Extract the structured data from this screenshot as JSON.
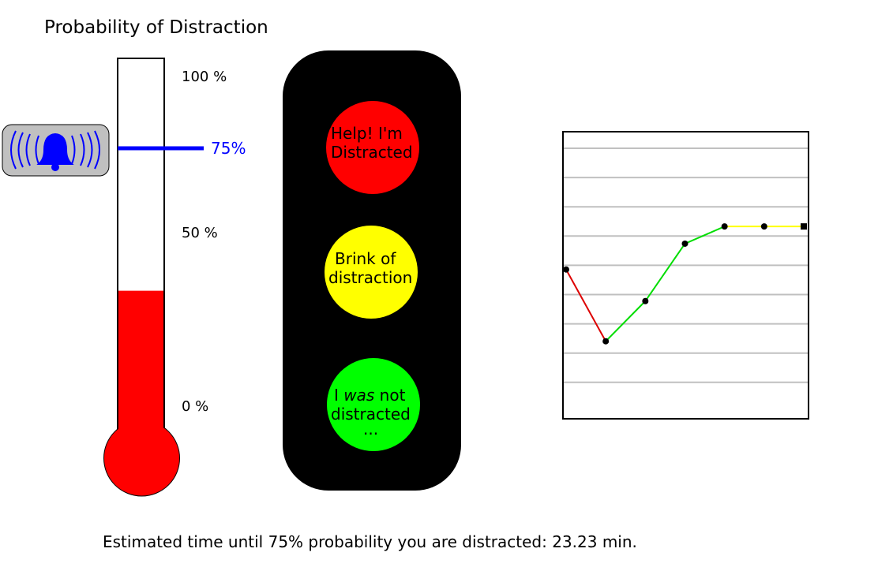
{
  "title": "Probability of Distraction",
  "thermometer": {
    "scale_labels": {
      "top": "100 %",
      "middle": "50 %",
      "bottom": "0 %"
    },
    "fill_level_percent": 39,
    "fill_color": "#ff0000",
    "threshold": {
      "label": "75%",
      "value_percent": 75,
      "color": "#0000ff"
    },
    "alarm_icon": "bell-icon"
  },
  "traffic_light": {
    "red": {
      "line1": "Help! I'm",
      "line2": "Distracted",
      "color": "#ff0000"
    },
    "yellow": {
      "line1": "Brink of",
      "line2": "distraction",
      "color": "#ffff00"
    },
    "green": {
      "line1_pre": "I ",
      "line1_em": "was",
      "line1_post": " not",
      "line2": "distracted",
      "line3": "...",
      "color": "#00ff00"
    }
  },
  "chart_data": {
    "type": "line",
    "x": [
      0,
      1,
      2,
      3,
      4,
      5,
      6
    ],
    "y": [
      52,
      27,
      41,
      61,
      67,
      67,
      67
    ],
    "segment_colors": [
      "#dd0000",
      "#00dd00",
      "#00dd00",
      "#00dd00",
      "#ffff00",
      "#ffff00"
    ],
    "grid": true,
    "ylim": [
      0,
      100
    ]
  },
  "footer": {
    "estimate_text": "Estimated time until 75% probability you are distracted:  23.23 min."
  }
}
